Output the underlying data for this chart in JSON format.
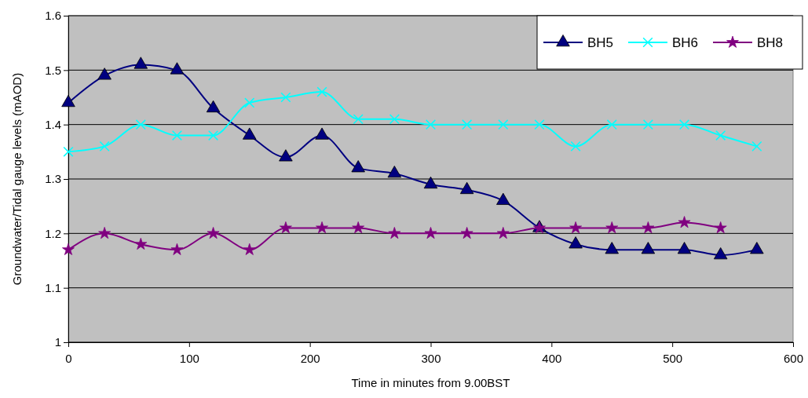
{
  "chart_data": {
    "type": "line",
    "xlabel": "Time in minutes from 9.00BST",
    "ylabel": "Groundwater/Tidal gauge levels (mAOD)",
    "xlim": [
      0,
      600
    ],
    "xticks": [
      0,
      100,
      200,
      300,
      400,
      500,
      600
    ],
    "ylim": [
      1,
      1.6
    ],
    "yticks": [
      1,
      1.1,
      1.2,
      1.3,
      1.4,
      1.5,
      1.6
    ],
    "grid": "y",
    "legend": "top right",
    "x": [
      0,
      30,
      60,
      90,
      120,
      150,
      180,
      210,
      240,
      270,
      300,
      330,
      360,
      390,
      420,
      450,
      480,
      510,
      540,
      570
    ],
    "series": [
      {
        "name": "BH5",
        "color": "#000080",
        "marker": "triangle",
        "values": [
          1.44,
          1.49,
          1.51,
          1.5,
          1.43,
          1.38,
          1.34,
          1.38,
          1.32,
          1.31,
          1.29,
          1.28,
          1.26,
          1.21,
          1.18,
          1.17,
          1.17,
          1.17,
          1.16,
          1.17
        ]
      },
      {
        "name": "BH6",
        "color": "#00ffff",
        "marker": "cross",
        "values": [
          1.35,
          1.36,
          1.4,
          1.38,
          1.38,
          1.44,
          1.45,
          1.46,
          1.41,
          1.41,
          1.4,
          1.4,
          1.4,
          1.4,
          1.36,
          1.4,
          1.4,
          1.4,
          1.38,
          1.36
        ]
      },
      {
        "name": "BH8",
        "color": "#800080",
        "marker": "star",
        "values": [
          1.17,
          1.2,
          1.18,
          1.17,
          1.2,
          1.17,
          1.21,
          1.21,
          1.21,
          1.2,
          1.2,
          1.2,
          1.2,
          1.21,
          1.21,
          1.21,
          1.21,
          1.22,
          1.21,
          null
        ]
      }
    ]
  }
}
